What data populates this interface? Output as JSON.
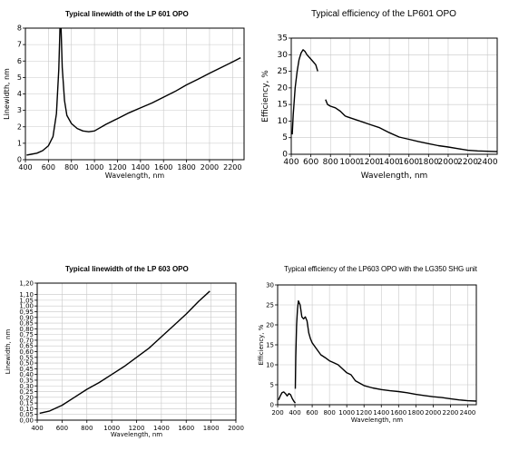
{
  "chart_data": [
    {
      "type": "line",
      "title": "Typical linewidth of  the LP 601 OPO",
      "xlabel": "Wavelength, nm",
      "ylabel": "Linewidth, nm",
      "xlim": [
        400,
        2300
      ],
      "ylim": [
        0,
        8
      ],
      "xticks": [
        "400",
        "600",
        "800",
        "1000",
        "1200",
        "1400",
        "1600",
        "1800",
        "2000",
        "2200"
      ],
      "yticks": [
        "0",
        "1",
        "2",
        "3",
        "4",
        "5",
        "6",
        "7",
        "8"
      ],
      "grid": true,
      "series": [
        {
          "points": [
            [
              410,
              0.28
            ],
            [
              450,
              0.33
            ],
            [
              500,
              0.4
            ],
            [
              550,
              0.55
            ],
            [
              600,
              0.85
            ],
            [
              640,
              1.4
            ],
            [
              670,
              2.8
            ],
            [
              690,
              5.5
            ],
            [
              700,
              8
            ],
            [
              710,
              8
            ],
            [
              720,
              5.6
            ],
            [
              740,
              3.6
            ],
            [
              760,
              2.7
            ],
            [
              800,
              2.2
            ],
            [
              850,
              1.9
            ],
            [
              900,
              1.75
            ],
            [
              950,
              1.7
            ],
            [
              1000,
              1.75
            ],
            [
              1100,
              2.15
            ],
            [
              1200,
              2.5
            ],
            [
              1300,
              2.85
            ],
            [
              1400,
              3.15
            ],
            [
              1500,
              3.45
            ],
            [
              1600,
              3.8
            ],
            [
              1700,
              4.15
            ],
            [
              1800,
              4.55
            ],
            [
              1900,
              4.9
            ],
            [
              2000,
              5.25
            ],
            [
              2100,
              5.6
            ],
            [
              2200,
              5.95
            ],
            [
              2270,
              6.2
            ]
          ]
        }
      ]
    },
    {
      "type": "line",
      "title": "Typical efficiency of the LP601 OPO",
      "xlabel": "Wavelength, nm",
      "ylabel": "Efficiency, %",
      "xlim": [
        400,
        2500
      ],
      "ylim": [
        0,
        35
      ],
      "xticks": [
        "400",
        "600",
        "800",
        "1000",
        "1200",
        "1400",
        "1600",
        "1800",
        "2000",
        "2200",
        "2400"
      ],
      "yticks": [
        "0",
        "5",
        "10",
        "15",
        "20",
        "25",
        "30",
        "35"
      ],
      "grid": true,
      "series": [
        {
          "points": [
            [
              410,
              6
            ],
            [
              420,
              12
            ],
            [
              440,
              20
            ],
            [
              460,
              25
            ],
            [
              480,
              28.5
            ],
            [
              500,
              30.5
            ],
            [
              520,
              31.5
            ],
            [
              540,
              31
            ],
            [
              560,
              30
            ],
            [
              590,
              29
            ],
            [
              620,
              28
            ],
            [
              650,
              27
            ],
            [
              670,
              25
            ]
          ]
        },
        {
          "points": [
            [
              750,
              16.5
            ],
            [
              770,
              15
            ],
            [
              800,
              14.5
            ],
            [
              850,
              14
            ],
            [
              900,
              13
            ],
            [
              950,
              11.5
            ],
            [
              1000,
              11
            ],
            [
              1100,
              10
            ],
            [
              1200,
              9
            ],
            [
              1300,
              8
            ],
            [
              1400,
              6.5
            ],
            [
              1500,
              5.2
            ],
            [
              1600,
              4.5
            ],
            [
              1700,
              3.8
            ],
            [
              1800,
              3.2
            ],
            [
              1900,
              2.6
            ],
            [
              2000,
              2.2
            ],
            [
              2100,
              1.7
            ],
            [
              2200,
              1.2
            ],
            [
              2300,
              1.0
            ],
            [
              2400,
              0.9
            ],
            [
              2500,
              0.8
            ]
          ]
        }
      ]
    },
    {
      "type": "line",
      "title": "Typical linewidth of  the LP 603 OPO",
      "xlabel": "Wavelength, nm",
      "ylabel": "Linewidth, nm",
      "xlim": [
        400,
        2000
      ],
      "ylim": [
        0,
        1.2
      ],
      "xticks": [
        "400",
        "600",
        "800",
        "1000",
        "1200",
        "1400",
        "1600",
        "1800",
        "2000"
      ],
      "yticks": [
        "0,00",
        "0,05",
        "0,10",
        "0,15",
        "0,20",
        "0,25",
        "0,30",
        "0,35",
        "0,40",
        "0,45",
        "0,50",
        "0,55",
        "0,60",
        "0,65",
        "0,70",
        "0,75",
        "0,80",
        "0,85",
        "0,90",
        "0,95",
        "1,00",
        "1,05",
        "1,10",
        "1,20"
      ],
      "grid": true,
      "series": [
        {
          "points": [
            [
              420,
              0.06
            ],
            [
              500,
              0.08
            ],
            [
              600,
              0.13
            ],
            [
              700,
              0.2
            ],
            [
              800,
              0.27
            ],
            [
              900,
              0.33
            ],
            [
              1000,
              0.4
            ],
            [
              1100,
              0.47
            ],
            [
              1200,
              0.55
            ],
            [
              1300,
              0.63
            ],
            [
              1400,
              0.73
            ],
            [
              1500,
              0.83
            ],
            [
              1600,
              0.93
            ],
            [
              1700,
              1.04
            ],
            [
              1790,
              1.13
            ]
          ]
        }
      ]
    },
    {
      "type": "line",
      "title": "Typical efficiency of the LP603 OPO with the LG350 SHG unit",
      "xlabel": "Wavelength, nm",
      "ylabel": "Efficiency, %",
      "xlim": [
        200,
        2500
      ],
      "ylim": [
        0,
        30
      ],
      "xticks": [
        "200",
        "400",
        "600",
        "800",
        "1000",
        "1200",
        "1400",
        "1600",
        "1800",
        "2000",
        "2200",
        "2400"
      ],
      "yticks": [
        "0",
        "5",
        "10",
        "15",
        "20",
        "25",
        "30"
      ],
      "grid": true,
      "series": [
        {
          "points": [
            [
              210,
              1.2
            ],
            [
              230,
              2.2
            ],
            [
              250,
              3
            ],
            [
              270,
              3.2
            ],
            [
              290,
              2.8
            ],
            [
              310,
              2.2
            ],
            [
              330,
              2.8
            ],
            [
              350,
              2.5
            ],
            [
              370,
              1.5
            ],
            [
              390,
              0.8
            ],
            [
              405,
              0.4
            ]
          ]
        },
        {
          "points": [
            [
              405,
              4
            ],
            [
              410,
              12
            ],
            [
              420,
              20
            ],
            [
              430,
              24
            ],
            [
              440,
              26
            ],
            [
              460,
              25
            ],
            [
              480,
              22
            ],
            [
              500,
              21.5
            ],
            [
              520,
              22
            ],
            [
              540,
              21
            ],
            [
              560,
              18
            ],
            [
              580,
              16.5
            ],
            [
              600,
              15.5
            ],
            [
              650,
              14
            ],
            [
              700,
              12.5
            ],
            [
              750,
              11.8
            ],
            [
              800,
              11
            ],
            [
              850,
              10.5
            ],
            [
              900,
              10
            ],
            [
              950,
              9
            ],
            [
              1000,
              8
            ],
            [
              1050,
              7.5
            ],
            [
              1100,
              6
            ],
            [
              1200,
              4.8
            ],
            [
              1300,
              4.2
            ],
            [
              1400,
              3.8
            ],
            [
              1500,
              3.5
            ],
            [
              1600,
              3.3
            ],
            [
              1700,
              3
            ],
            [
              1800,
              2.6
            ],
            [
              1900,
              2.3
            ],
            [
              2000,
              2
            ],
            [
              2100,
              1.8
            ],
            [
              2200,
              1.5
            ],
            [
              2300,
              1.2
            ],
            [
              2400,
              1.0
            ],
            [
              2500,
              0.9
            ]
          ]
        }
      ]
    }
  ]
}
